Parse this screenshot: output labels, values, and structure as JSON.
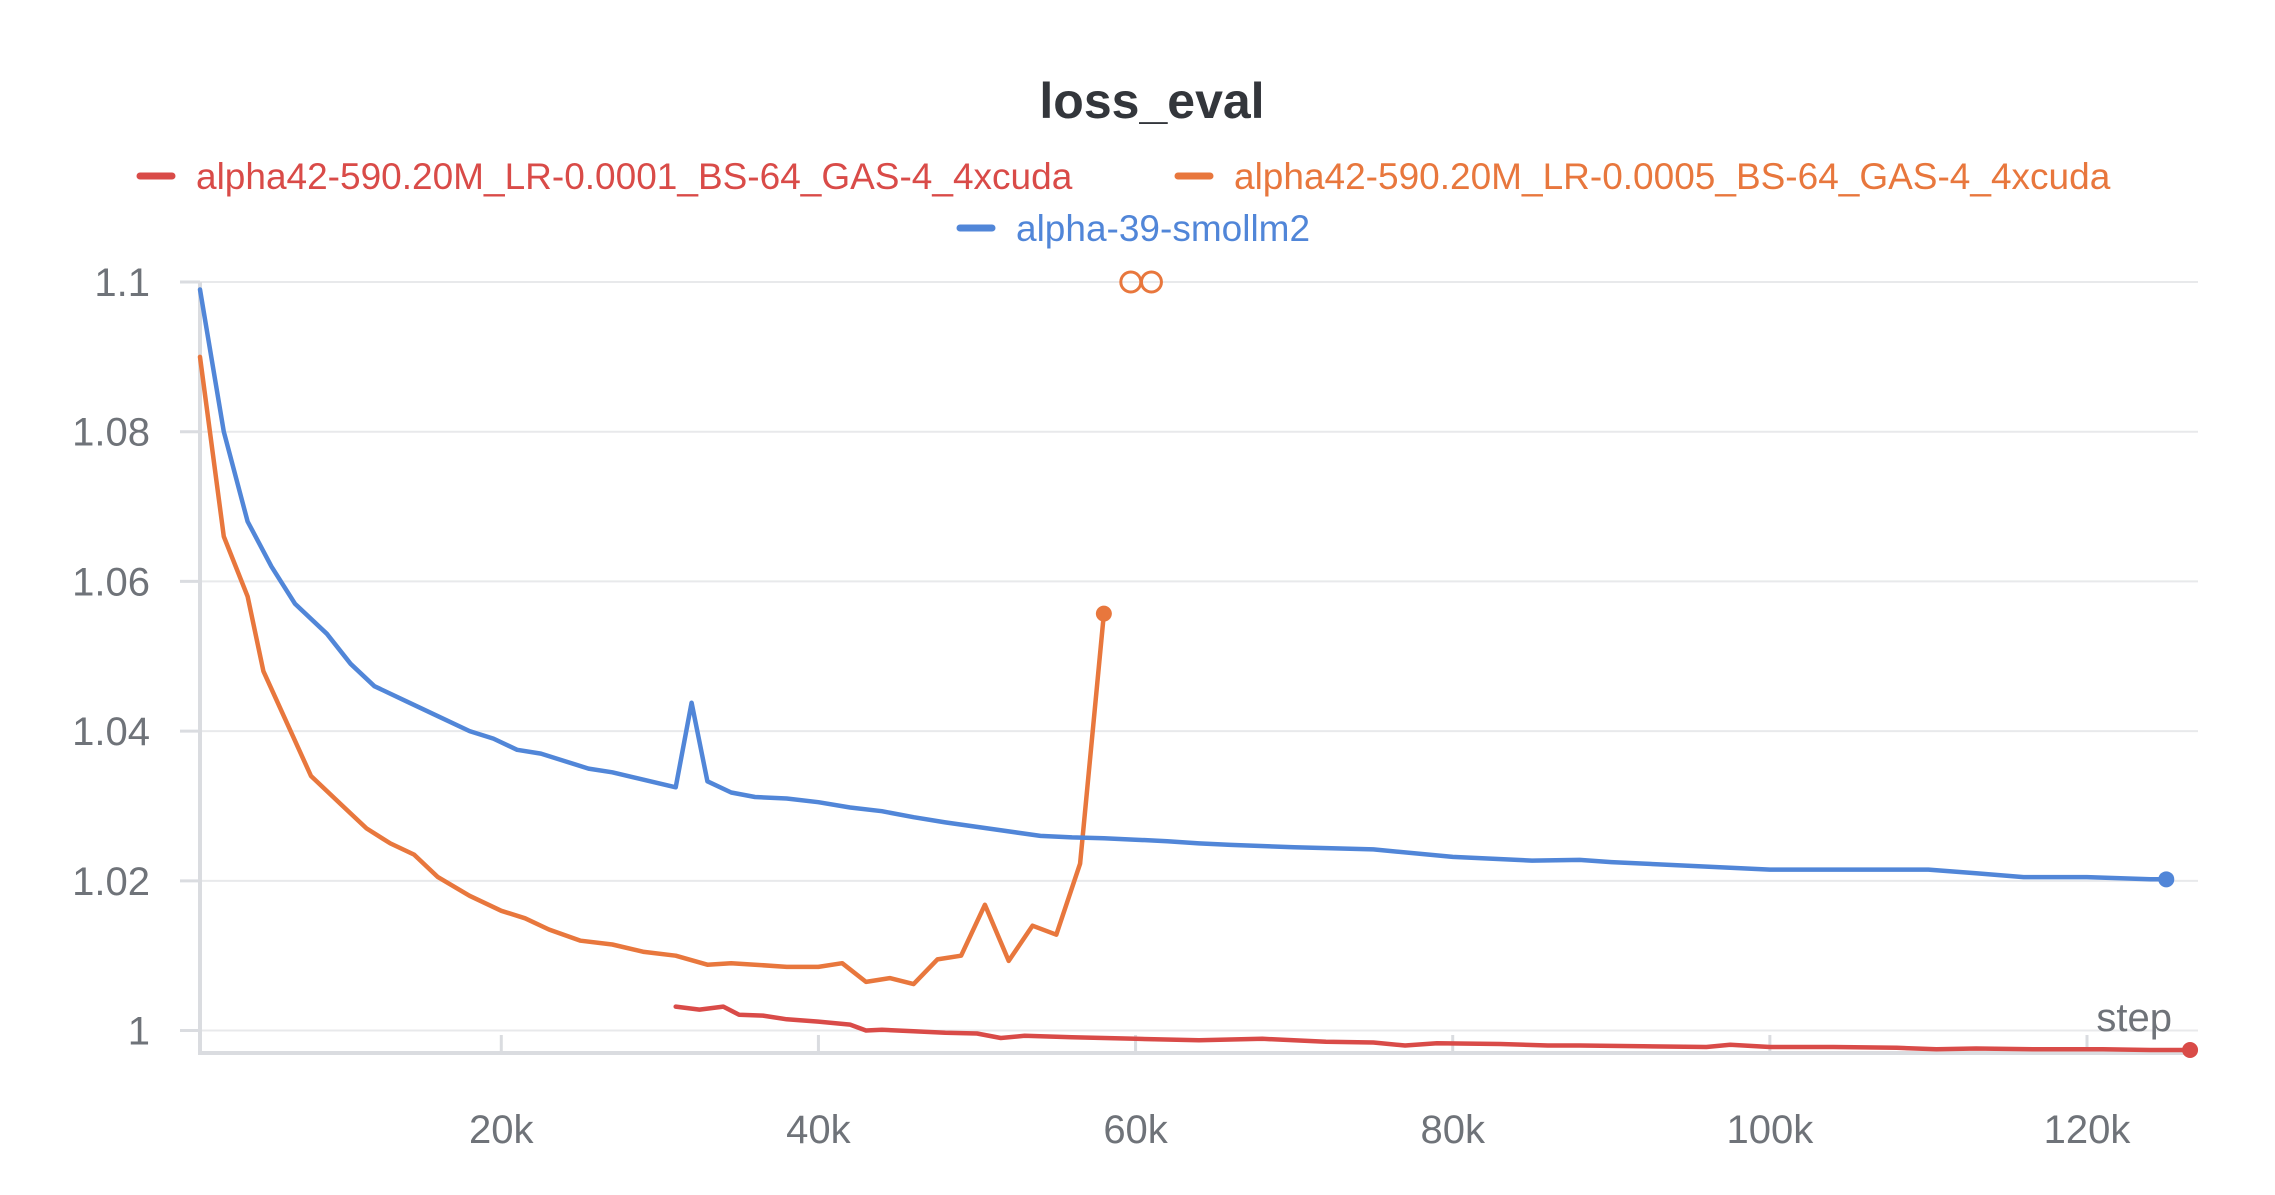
{
  "chart_data": {
    "type": "line",
    "title": "loss_eval",
    "xlabel": "step",
    "ylabel": "",
    "xlim": [
      1000,
      127000
    ],
    "ylim": [
      0.997,
      1.1
    ],
    "x_ticks": [
      20000,
      40000,
      60000,
      80000,
      100000,
      120000
    ],
    "x_tick_labels": [
      "20k",
      "40k",
      "60k",
      "80k",
      "100k",
      "120k"
    ],
    "y_ticks": [
      1,
      1.02,
      1.04,
      1.06,
      1.08,
      1.1
    ],
    "y_tick_labels": [
      "1",
      "1.02",
      "1.04",
      "1.06",
      "1.08",
      "1.1"
    ],
    "grid": true,
    "legend_position": "top",
    "series": [
      {
        "name": "alpha42-590.20M_LR-0.0001_BS-64_GAS-4_4xcuda",
        "color": "#d94b48",
        "x": [
          31000,
          32500,
          34000,
          35000,
          36500,
          38000,
          40000,
          42000,
          43000,
          44000,
          46000,
          48000,
          50000,
          51500,
          53000,
          56000,
          60000,
          64000,
          66000,
          68000,
          72000,
          75000,
          77000,
          79000,
          83000,
          86000,
          88000,
          92000,
          96000,
          97500,
          100000,
          104000,
          108000,
          110500,
          113000,
          117000,
          121000,
          124000,
          126500
        ],
        "y": [
          1.0032,
          1.0028,
          1.0032,
          1.0021,
          1.002,
          1.0015,
          1.0012,
          1.0008,
          1.0,
          1.0001,
          0.9999,
          0.9997,
          0.9996,
          0.999,
          0.9993,
          0.9991,
          0.9989,
          0.9987,
          0.9988,
          0.9989,
          0.9985,
          0.9984,
          0.998,
          0.9983,
          0.9982,
          0.998,
          0.998,
          0.9979,
          0.9978,
          0.9981,
          0.9978,
          0.9978,
          0.9977,
          0.9975,
          0.9976,
          0.9975,
          0.9975,
          0.9974,
          0.9974
        ]
      },
      {
        "name": "alpha42-590.20M_LR-0.0005_BS-64_GAS-4_4xcuda",
        "color": "#e8773d",
        "x": [
          1000,
          2500,
          4000,
          5000,
          6500,
          8000,
          10000,
          11500,
          13000,
          14500,
          16000,
          18000,
          20000,
          21500,
          23000,
          25000,
          27000,
          29000,
          31000,
          33000,
          34500,
          36000,
          38000,
          40000,
          41500,
          43000,
          44500,
          46000,
          47500,
          49000,
          50500,
          52000,
          53500,
          55000,
          56500,
          58000
        ],
        "y": [
          1.09,
          1.066,
          1.058,
          1.048,
          1.041,
          1.034,
          1.03,
          1.027,
          1.025,
          1.0235,
          1.0205,
          1.018,
          1.016,
          1.015,
          1.0135,
          1.012,
          1.0115,
          1.0105,
          1.01,
          1.0088,
          1.009,
          1.0088,
          1.0085,
          1.0085,
          1.009,
          1.0065,
          1.007,
          1.0062,
          1.0095,
          1.01,
          1.0168,
          1.0093,
          1.014,
          1.0128,
          1.0223,
          1.0557
        ]
      },
      {
        "name": "alpha-39-smollm2",
        "color": "#5186d8",
        "x": [
          1000,
          2500,
          4000,
          5500,
          7000,
          9000,
          10500,
          12000,
          14000,
          16000,
          18000,
          19500,
          21000,
          22500,
          24000,
          25500,
          27000,
          29000,
          31000,
          32000,
          33000,
          34500,
          36000,
          38000,
          40000,
          42000,
          44000,
          46000,
          48000,
          50000,
          52000,
          54000,
          56000,
          58000,
          60000,
          62000,
          64000,
          66000,
          70000,
          75000,
          80000,
          85000,
          88000,
          90000,
          95000,
          100000,
          105000,
          110000,
          113000,
          116000,
          120000,
          124000,
          125000
        ],
        "y": [
          1.099,
          1.08,
          1.068,
          1.062,
          1.057,
          1.053,
          1.049,
          1.046,
          1.044,
          1.042,
          1.04,
          1.039,
          1.0375,
          1.037,
          1.036,
          1.035,
          1.0345,
          1.0335,
          1.0325,
          1.0438,
          1.0333,
          1.0318,
          1.0312,
          1.031,
          1.0305,
          1.0298,
          1.0293,
          1.0285,
          1.0278,
          1.0272,
          1.0266,
          1.026,
          1.0258,
          1.0257,
          1.0255,
          1.0253,
          1.025,
          1.0248,
          1.0245,
          1.0242,
          1.0232,
          1.0227,
          1.0228,
          1.0225,
          1.022,
          1.0215,
          1.0215,
          1.0215,
          1.021,
          1.0205,
          1.0205,
          1.0202,
          1.0202
        ]
      }
    ],
    "annotations": [
      {
        "type": "clipped-markers",
        "series": "alpha42-590.20M_LR-0.0005_BS-64_GAS-4_4xcuda",
        "x": [
          59700,
          61000
        ],
        "y": 1.1
      }
    ]
  }
}
